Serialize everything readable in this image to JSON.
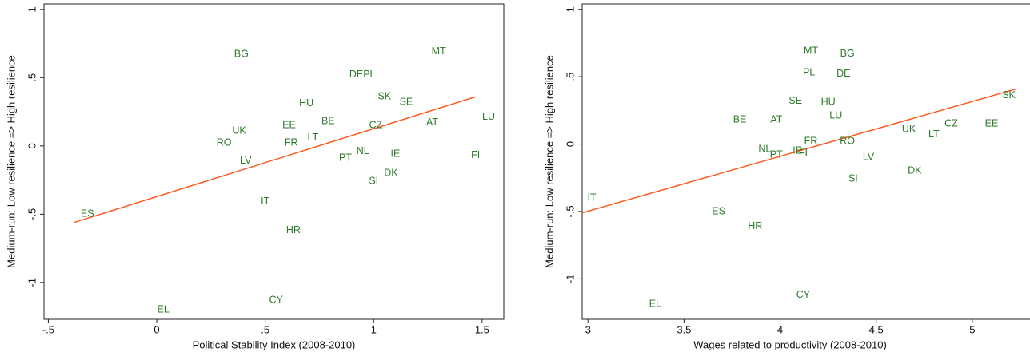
{
  "chart_data": [
    {
      "type": "scatter",
      "xlabel": "Political Stability Index (2008-2010)",
      "ylabel": "Medium-run: Low resilience => High resilience",
      "xlim": [
        -0.52,
        1.6
      ],
      "ylim": [
        -1.27,
        1.04
      ],
      "xticks": [
        {
          "value": -0.5,
          "label": "-.5"
        },
        0,
        {
          "value": 0.5,
          "label": ".5"
        },
        1,
        1.5
      ],
      "yticks": [
        {
          "value": -1,
          "label": "-1"
        },
        {
          "value": -0.5,
          "label": "-.5"
        },
        0,
        {
          "value": 0.5,
          "label": ".5"
        },
        1
      ],
      "labels": [
        "BG",
        "MT",
        "DE",
        "PL",
        "SK",
        "SE",
        "HU",
        "EE",
        "BE",
        "CZ",
        "AT",
        "LU",
        "UK",
        "RO",
        "FR",
        "LT",
        "LV",
        "NL",
        "PT",
        "IE",
        "FI",
        "DK",
        "SI",
        "IT",
        "ES",
        "HR",
        "CY",
        "EL"
      ],
      "x": [
        0.39,
        1.3,
        0.92,
        0.98,
        1.05,
        1.15,
        0.69,
        0.61,
        0.79,
        1.01,
        1.27,
        1.53,
        0.38,
        0.31,
        0.62,
        0.72,
        0.41,
        0.95,
        0.87,
        1.1,
        1.47,
        1.08,
        1.0,
        0.5,
        -0.32,
        0.63,
        0.55,
        0.03
      ],
      "y": [
        0.67,
        0.69,
        0.52,
        0.52,
        0.36,
        0.32,
        0.31,
        0.15,
        0.18,
        0.15,
        0.17,
        0.21,
        0.11,
        0.02,
        0.02,
        0.06,
        -0.11,
        -0.04,
        -0.09,
        -0.06,
        -0.07,
        -0.2,
        -0.26,
        -0.41,
        -0.5,
        -0.62,
        -1.13,
        -1.2
      ],
      "color": "#2e7a2a",
      "fit_line": {
        "x": [
          -0.38,
          1.47
        ],
        "y": [
          -0.56,
          0.36
        ],
        "color": "#ff5a1f"
      }
    },
    {
      "type": "scatter",
      "xlabel": "Wages related to productivity (2008-2010)",
      "ylabel": "Medium-run: Low resilience => High resilience",
      "xlim": [
        2.97,
        5.35
      ],
      "ylim": [
        -1.3,
        1.04
      ],
      "xticks": [
        3,
        3.5,
        4,
        4.5,
        5
      ],
      "yticks": [
        {
          "value": -1,
          "label": "-1"
        },
        {
          "value": -0.5,
          "label": "-.5"
        },
        0,
        {
          "value": 0.5,
          "label": ".5"
        },
        1
      ],
      "labels": [
        "MT",
        "BG",
        "PL",
        "DE",
        "SE",
        "HU",
        "LU",
        "BE",
        "AT",
        "SK",
        "UK",
        "CZ",
        "EE",
        "LT",
        "FR",
        "RO",
        "NL",
        "PT",
        "IE",
        "FI",
        "LV",
        "DK",
        "SI",
        "IT",
        "ES",
        "HR",
        "CY",
        "EL"
      ],
      "x": [
        4.16,
        4.35,
        4.15,
        4.33,
        4.08,
        4.25,
        4.29,
        3.79,
        3.98,
        5.19,
        4.67,
        4.89,
        5.1,
        4.8,
        4.16,
        4.35,
        3.92,
        3.98,
        4.09,
        4.12,
        4.46,
        4.7,
        4.38,
        3.02,
        3.68,
        3.87,
        4.12,
        3.35
      ],
      "y": [
        0.69,
        0.67,
        0.53,
        0.52,
        0.32,
        0.31,
        0.21,
        0.18,
        0.18,
        0.36,
        0.11,
        0.15,
        0.15,
        0.07,
        0.02,
        0.02,
        -0.04,
        -0.08,
        -0.05,
        -0.07,
        -0.1,
        -0.2,
        -0.26,
        -0.4,
        -0.5,
        -0.61,
        -1.12,
        -1.19
      ],
      "color": "#2e7a2a",
      "fit_line": {
        "x": [
          2.97,
          5.23
        ],
        "y": [
          -0.51,
          0.41
        ],
        "color": "#ff5a1f"
      }
    }
  ]
}
